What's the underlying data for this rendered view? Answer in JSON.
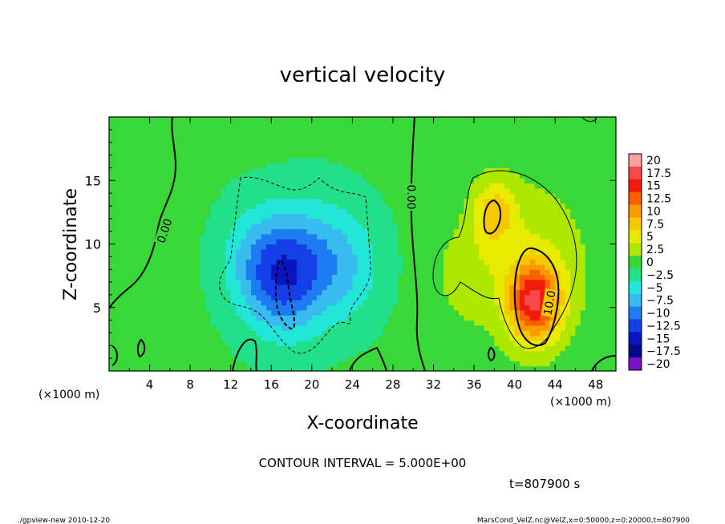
{
  "chart_data": {
    "type": "heatmap",
    "title": "vertical velocity",
    "xlabel": "X-coordinate",
    "ylabel": "Z-coordinate",
    "x_unit_left": "(×1000 m)",
    "x_unit_right": "(×1000 m)",
    "xlim": [
      0,
      50
    ],
    "ylim": [
      0,
      20
    ],
    "xticks": [
      4,
      8,
      12,
      16,
      20,
      24,
      28,
      32,
      36,
      40,
      44,
      48
    ],
    "yticks": [
      5,
      10,
      15
    ],
    "contour_labels": [
      "0.00",
      "0.00",
      "10.0"
    ],
    "contour_interval_text": "CONTOUR INTERVAL = 5.000E+00",
    "time_text": "t=807900 s",
    "colorbar": {
      "labels": [
        "20",
        "17.5",
        "15",
        "12.5",
        "10",
        "7.5",
        "5",
        "2.5",
        "0",
        "−2.5",
        "−5",
        "−7.5",
        "−10",
        "−12.5",
        "−15",
        "−17.5",
        "−20"
      ],
      "colors": [
        "#ff9f9f",
        "#f84848",
        "#f21a0a",
        "#f86000",
        "#fa9a00",
        "#f6c800",
        "#e8ea00",
        "#aee800",
        "#38d838",
        "#22e08a",
        "#22e6d8",
        "#38bcf0",
        "#1e7cf2",
        "#143ee6",
        "#0a14c2",
        "#06088c",
        "#7a10c8"
      ]
    },
    "field": {
      "background_value": 0.5,
      "cells": [
        {
          "x": 17.0,
          "z": 7.5,
          "sx": 2.8,
          "sz": 3.2,
          "w": -10.5
        },
        {
          "x": 20.5,
          "z": 9.0,
          "sx": 3.5,
          "sz": 3.5,
          "w": -4.5
        },
        {
          "x": 23.5,
          "z": 8.0,
          "sx": 2.5,
          "sz": 3.0,
          "w": -3.0
        },
        {
          "x": 13.5,
          "z": 9.0,
          "sx": 2.2,
          "sz": 3.0,
          "w": -2.5
        },
        {
          "x": 42.0,
          "z": 5.5,
          "sx": 1.8,
          "sz": 2.2,
          "w": 15.0
        },
        {
          "x": 38.0,
          "z": 12.5,
          "sx": 1.5,
          "sz": 1.8,
          "w": 7.0
        },
        {
          "x": 41.5,
          "z": 8.5,
          "sx": 4.5,
          "sz": 5.0,
          "w": 4.0
        },
        {
          "x": 35.0,
          "z": 7.5,
          "sx": 2.0,
          "sz": 2.5,
          "w": 2.5
        }
      ]
    }
  },
  "footer": {
    "left": "./gpview-new  2010-12-20",
    "right": "MarsCond_VelZ.nc@VelZ,x=0:50000,z=0:20000,t=807900"
  }
}
